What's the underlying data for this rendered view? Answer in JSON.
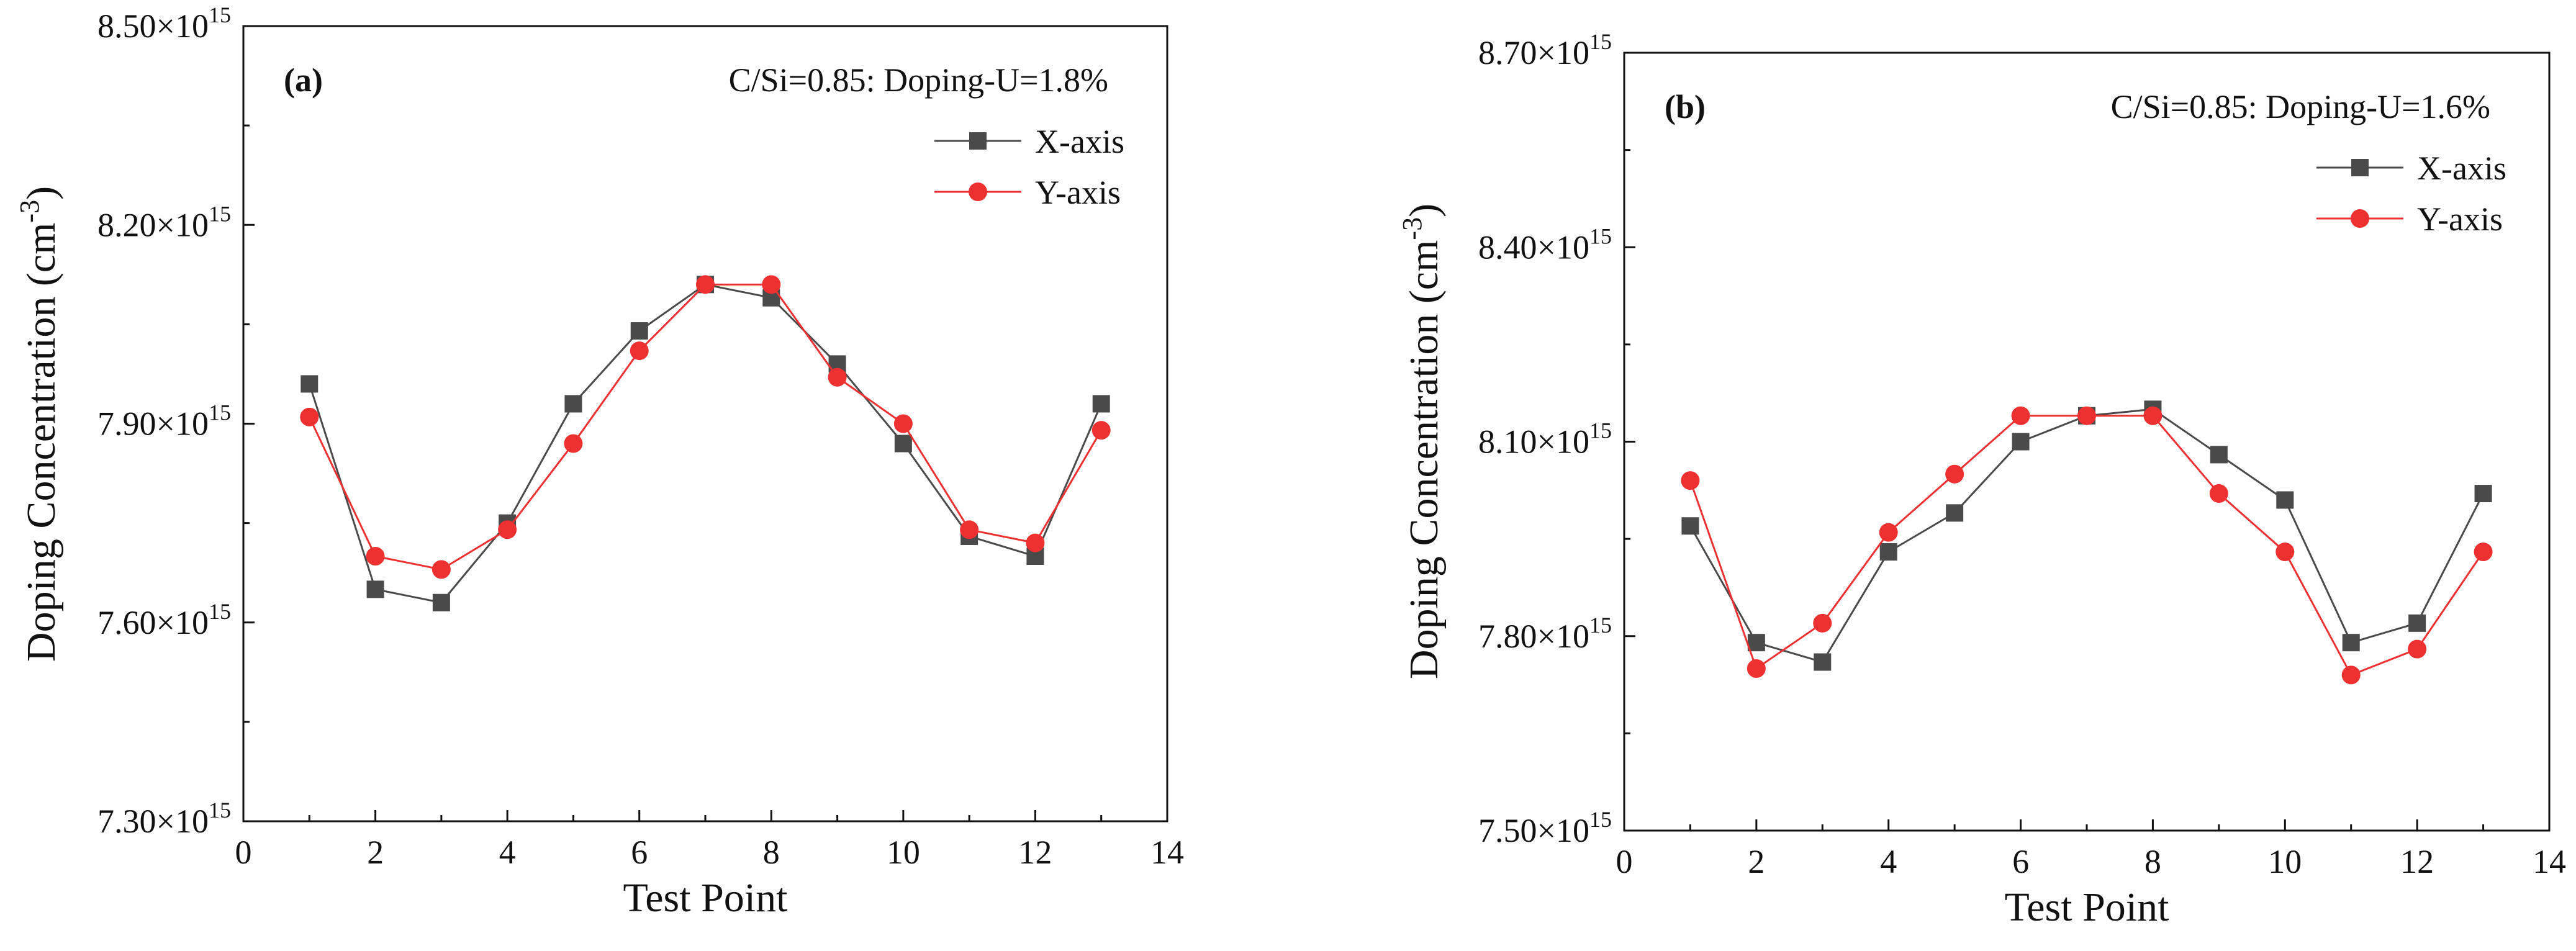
{
  "chart_data": [
    {
      "type": "line",
      "panel_label": "(a)",
      "annotation": "C/Si=0.85: Doping-U=1.8%",
      "xlabel": "Test Point",
      "ylabel": "Doping Concentration (cm",
      "ylabel_sup": "-3",
      "ylabel_close": ")",
      "xlim": [
        0,
        14
      ],
      "ylim": [
        7.3,
        8.5
      ],
      "xticks": [
        0,
        2,
        4,
        6,
        8,
        10,
        12,
        14
      ],
      "xtick_labels": [
        "0",
        "2",
        "4",
        "6",
        "8",
        "10",
        "12",
        "14"
      ],
      "yticks": [
        7.3,
        7.6,
        7.9,
        8.2,
        8.5
      ],
      "ytick_labels": [
        {
          "mant": "7.30×10",
          "exp": "15"
        },
        {
          "mant": "7.60×10",
          "exp": "15"
        },
        {
          "mant": "7.90×10",
          "exp": "15"
        },
        {
          "mant": "8.20×10",
          "exp": "15"
        },
        {
          "mant": "8.50×10",
          "exp": "15"
        }
      ],
      "unit_scale": "1e15",
      "legend_position": "upper-right",
      "x": [
        1,
        2,
        3,
        4,
        5,
        6,
        7,
        8,
        9,
        10,
        11,
        12,
        13
      ],
      "series": [
        {
          "name": "X-axis",
          "marker": "square",
          "color": "#4a4a4a",
          "values": [
            7.96,
            7.65,
            7.63,
            7.75,
            7.93,
            8.04,
            8.11,
            8.09,
            7.99,
            7.87,
            7.73,
            7.7,
            7.93
          ]
        },
        {
          "name": "Y-axis",
          "marker": "circle",
          "color": "#ee3030",
          "values": [
            7.91,
            7.7,
            7.68,
            7.74,
            7.87,
            8.01,
            8.11,
            8.11,
            7.97,
            7.9,
            7.74,
            7.72,
            7.89
          ]
        }
      ]
    },
    {
      "type": "line",
      "panel_label": "(b)",
      "annotation": "C/Si=0.85: Doping-U=1.6%",
      "xlabel": "Test Point",
      "ylabel": "Doping Concentration (cm",
      "ylabel_sup": "-3",
      "ylabel_close": ")",
      "xlim": [
        0,
        14
      ],
      "ylim": [
        7.5,
        8.7
      ],
      "xticks": [
        0,
        2,
        4,
        6,
        8,
        10,
        12,
        14
      ],
      "xtick_labels": [
        "0",
        "2",
        "4",
        "6",
        "8",
        "10",
        "12",
        "14"
      ],
      "yticks": [
        7.5,
        7.8,
        8.1,
        8.4,
        8.7
      ],
      "ytick_labels": [
        {
          "mant": "7.50×10",
          "exp": "15"
        },
        {
          "mant": "7.80×10",
          "exp": "15"
        },
        {
          "mant": "8.10×10",
          "exp": "15"
        },
        {
          "mant": "8.40×10",
          "exp": "15"
        },
        {
          "mant": "8.70×10",
          "exp": "15"
        }
      ],
      "unit_scale": "1e15",
      "legend_position": "upper-right",
      "x": [
        1,
        2,
        3,
        4,
        5,
        6,
        7,
        8,
        9,
        10,
        11,
        12,
        13
      ],
      "series": [
        {
          "name": "X-axis",
          "marker": "square",
          "color": "#4a4a4a",
          "values": [
            7.97,
            7.79,
            7.76,
            7.93,
            7.99,
            8.1,
            8.14,
            8.15,
            8.08,
            8.01,
            7.79,
            7.82,
            8.02
          ]
        },
        {
          "name": "Y-axis",
          "marker": "circle",
          "color": "#ee3030",
          "values": [
            8.04,
            7.75,
            7.82,
            7.96,
            8.05,
            8.14,
            8.14,
            8.14,
            8.02,
            7.93,
            7.74,
            7.78,
            7.93
          ]
        }
      ]
    }
  ]
}
